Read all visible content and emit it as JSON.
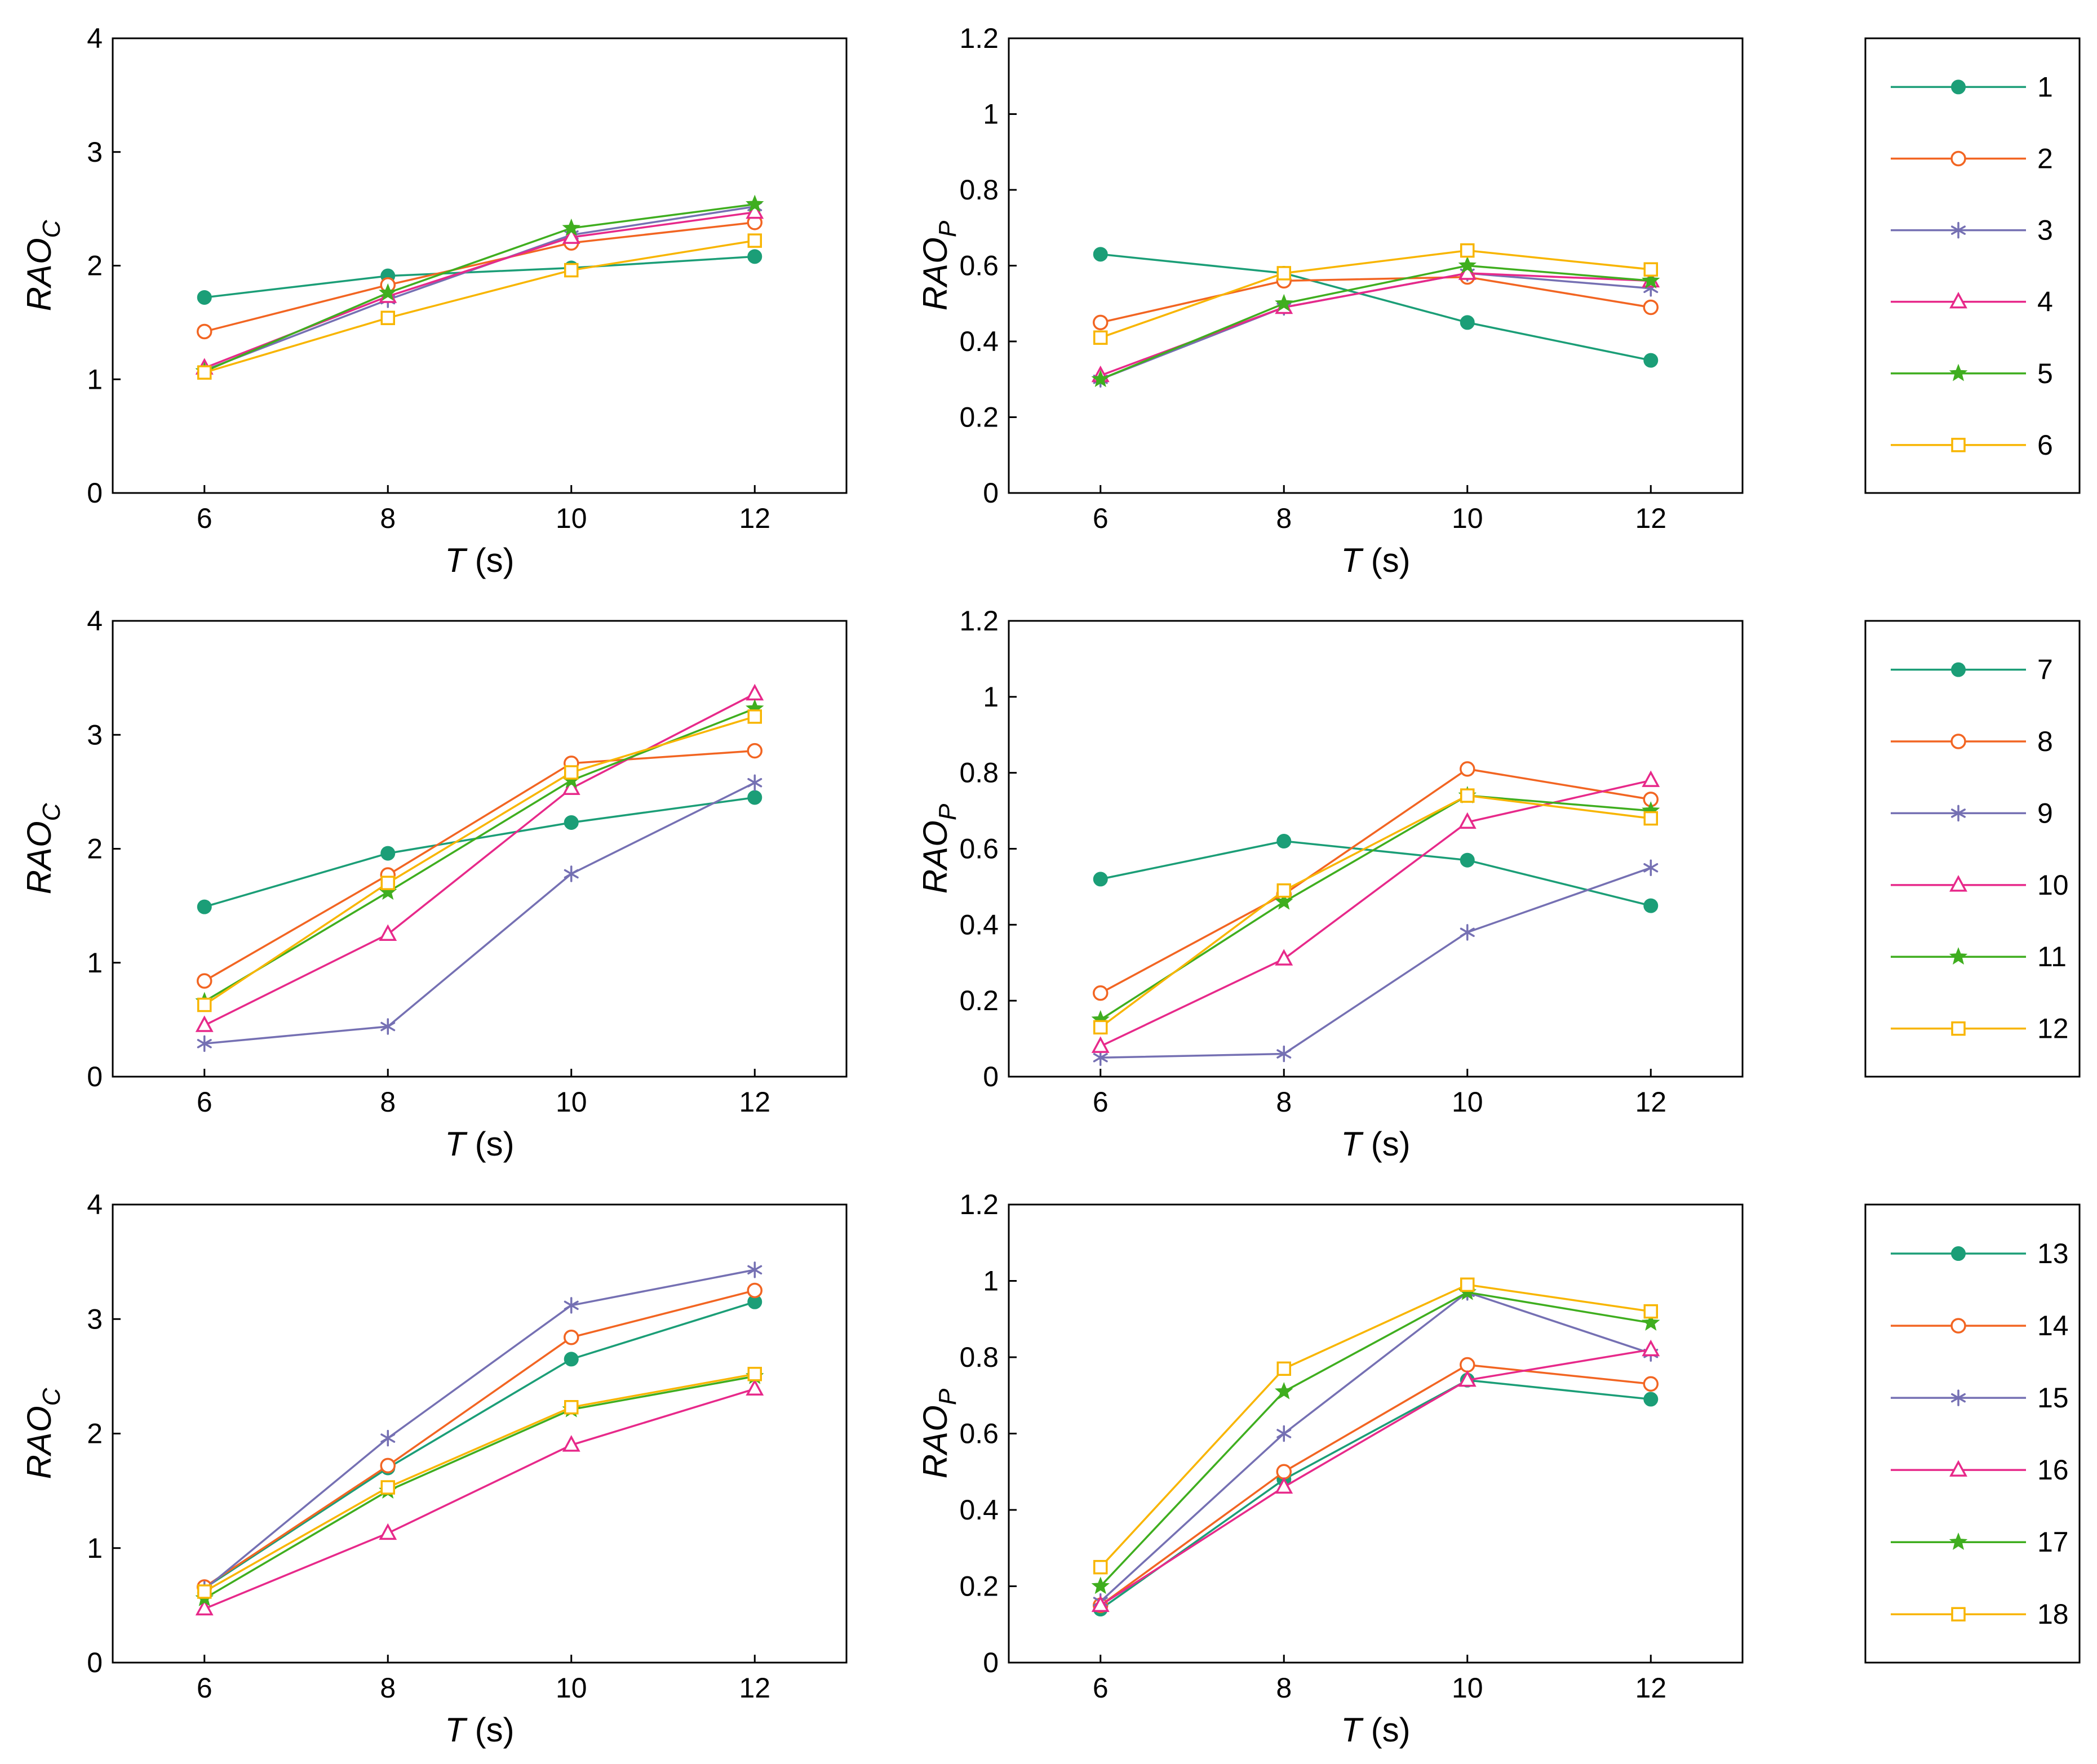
{
  "figure": {
    "x_title": "T",
    "x_unit": " (s)",
    "y_title_rao": "RAO",
    "sub_c": "C",
    "sub_p": "P"
  },
  "colors": {
    "1": "#1b9e77",
    "2": "#f26522",
    "3": "#7570b3",
    "4": "#e7298a",
    "5": "#3fae1f",
    "6": "#f8b500"
  },
  "markers": {
    "1": "filled-circle",
    "2": "open-circle",
    "3": "asterisk",
    "4": "open-triangle",
    "5": "star",
    "6": "open-square"
  },
  "chart_data": [
    {
      "type": "line",
      "ylabel": "RAO_C",
      "xlabel": "T (s)",
      "x": [
        6,
        8,
        10,
        12
      ],
      "xlim": [
        5,
        13
      ],
      "ylim": [
        0,
        4
      ],
      "xticks": [
        6,
        8,
        10,
        12
      ],
      "yticks": [
        "0",
        "1",
        "2",
        "3",
        "4"
      ],
      "grid": false,
      "series": [
        {
          "name": "1",
          "values": [
            1.72,
            1.91,
            1.98,
            2.08
          ]
        },
        {
          "name": "2",
          "values": [
            1.42,
            1.83,
            2.2,
            2.38
          ]
        },
        {
          "name": "3",
          "values": [
            1.08,
            1.7,
            2.27,
            2.52
          ]
        },
        {
          "name": "4",
          "values": [
            1.1,
            1.73,
            2.25,
            2.47
          ]
        },
        {
          "name": "5",
          "values": [
            1.07,
            1.76,
            2.33,
            2.54
          ]
        },
        {
          "name": "6",
          "values": [
            1.06,
            1.54,
            1.96,
            2.22
          ]
        }
      ]
    },
    {
      "type": "line",
      "ylabel": "RAO_P",
      "xlabel": "T (s)",
      "x": [
        6,
        8,
        10,
        12
      ],
      "xlim": [
        5,
        13
      ],
      "ylim": [
        0,
        1.2
      ],
      "xticks": [
        6,
        8,
        10,
        12
      ],
      "yticks": [
        "0",
        "0.2",
        "0.4",
        "0.6",
        "0.8",
        "1",
        "1.2"
      ],
      "grid": false,
      "series": [
        {
          "name": "1",
          "values": [
            0.63,
            0.58,
            0.45,
            0.35
          ]
        },
        {
          "name": "2",
          "values": [
            0.45,
            0.56,
            0.57,
            0.49
          ]
        },
        {
          "name": "3",
          "values": [
            0.3,
            0.49,
            0.58,
            0.54
          ]
        },
        {
          "name": "4",
          "values": [
            0.31,
            0.49,
            0.58,
            0.56
          ]
        },
        {
          "name": "5",
          "values": [
            0.3,
            0.5,
            0.6,
            0.56
          ]
        },
        {
          "name": "6",
          "values": [
            0.41,
            0.58,
            0.64,
            0.59
          ]
        }
      ]
    },
    {
      "type": "line",
      "ylabel": "RAO_C",
      "xlabel": "T (s)",
      "x": [
        6,
        8,
        10,
        12
      ],
      "xlim": [
        5,
        13
      ],
      "ylim": [
        0,
        4
      ],
      "xticks": [
        6,
        8,
        10,
        12
      ],
      "yticks": [
        "0",
        "1",
        "2",
        "3",
        "4"
      ],
      "grid": false,
      "series": [
        {
          "name": "7",
          "values": [
            1.49,
            1.96,
            2.23,
            2.45
          ]
        },
        {
          "name": "8",
          "values": [
            0.84,
            1.77,
            2.75,
            2.86
          ]
        },
        {
          "name": "9",
          "values": [
            0.29,
            0.44,
            1.78,
            2.58
          ]
        },
        {
          "name": "10",
          "values": [
            0.45,
            1.25,
            2.53,
            3.36
          ]
        },
        {
          "name": "11",
          "values": [
            0.66,
            1.62,
            2.6,
            3.23
          ]
        },
        {
          "name": "12",
          "values": [
            0.63,
            1.7,
            2.67,
            3.16
          ]
        }
      ]
    },
    {
      "type": "line",
      "ylabel": "RAO_P",
      "xlabel": "T (s)",
      "x": [
        6,
        8,
        10,
        12
      ],
      "xlim": [
        5,
        13
      ],
      "ylim": [
        0,
        1.2
      ],
      "xticks": [
        6,
        8,
        10,
        12
      ],
      "yticks": [
        "0",
        "0.2",
        "0.4",
        "0.6",
        "0.8",
        "1",
        "1.2"
      ],
      "grid": false,
      "series": [
        {
          "name": "7",
          "values": [
            0.52,
            0.62,
            0.57,
            0.45
          ]
        },
        {
          "name": "8",
          "values": [
            0.22,
            0.48,
            0.81,
            0.73
          ]
        },
        {
          "name": "9",
          "values": [
            0.05,
            0.06,
            0.38,
            0.55
          ]
        },
        {
          "name": "10",
          "values": [
            0.08,
            0.31,
            0.67,
            0.78
          ]
        },
        {
          "name": "11",
          "values": [
            0.15,
            0.46,
            0.74,
            0.7
          ]
        },
        {
          "name": "12",
          "values": [
            0.13,
            0.49,
            0.74,
            0.68
          ]
        }
      ]
    },
    {
      "type": "line",
      "ylabel": "RAO_C",
      "xlabel": "T (s)",
      "x": [
        6,
        8,
        10,
        12
      ],
      "xlim": [
        5,
        13
      ],
      "ylim": [
        0,
        4
      ],
      "xticks": [
        6,
        8,
        10,
        12
      ],
      "yticks": [
        "0",
        "1",
        "2",
        "3",
        "4"
      ],
      "grid": false,
      "series": [
        {
          "name": "13",
          "values": [
            0.65,
            1.7,
            2.65,
            3.15
          ]
        },
        {
          "name": "14",
          "values": [
            0.66,
            1.72,
            2.84,
            3.25
          ]
        },
        {
          "name": "15",
          "values": [
            0.64,
            1.96,
            3.12,
            3.43
          ]
        },
        {
          "name": "16",
          "values": [
            0.47,
            1.13,
            1.9,
            2.39
          ]
        },
        {
          "name": "17",
          "values": [
            0.56,
            1.5,
            2.21,
            2.5
          ]
        },
        {
          "name": "18",
          "values": [
            0.62,
            1.53,
            2.23,
            2.52
          ]
        }
      ]
    },
    {
      "type": "line",
      "ylabel": "RAO_P",
      "xlabel": "T (s)",
      "x": [
        6,
        8,
        10,
        12
      ],
      "xlim": [
        5,
        13
      ],
      "ylim": [
        0,
        1.2
      ],
      "xticks": [
        6,
        8,
        10,
        12
      ],
      "yticks": [
        "0",
        "0.2",
        "0.4",
        "0.6",
        "0.8",
        "1",
        "1.2"
      ],
      "grid": false,
      "series": [
        {
          "name": "13",
          "values": [
            0.14,
            0.48,
            0.74,
            0.69
          ]
        },
        {
          "name": "14",
          "values": [
            0.15,
            0.5,
            0.78,
            0.73
          ]
        },
        {
          "name": "15",
          "values": [
            0.16,
            0.6,
            0.97,
            0.81
          ]
        },
        {
          "name": "16",
          "values": [
            0.15,
            0.46,
            0.74,
            0.82
          ]
        },
        {
          "name": "17",
          "values": [
            0.2,
            0.71,
            0.97,
            0.89
          ]
        },
        {
          "name": "18",
          "values": [
            0.25,
            0.77,
            0.99,
            0.92
          ]
        }
      ]
    }
  ],
  "legends": [
    {
      "entries": [
        "1",
        "2",
        "3",
        "4",
        "5",
        "6"
      ]
    },
    {
      "entries": [
        "7",
        "8",
        "9",
        "10",
        "11",
        "12"
      ]
    },
    {
      "entries": [
        "13",
        "14",
        "15",
        "16",
        "17",
        "18"
      ]
    }
  ]
}
